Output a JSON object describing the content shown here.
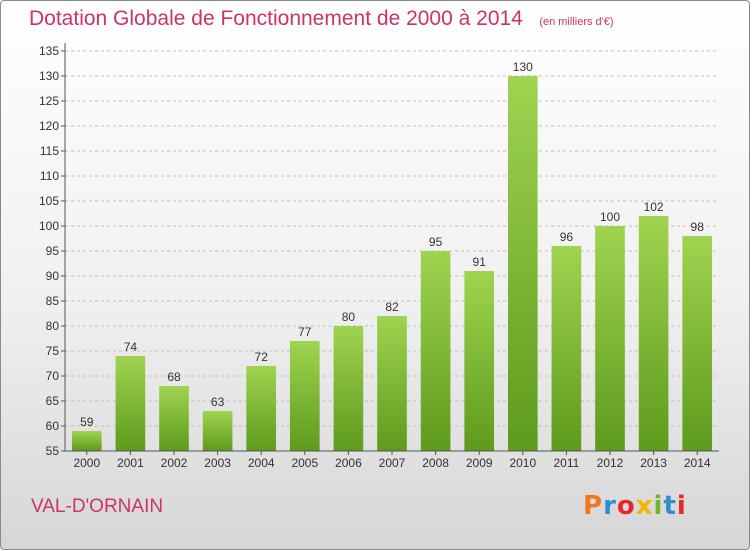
{
  "title": "Dotation Globale de Fonctionnement de 2000 à 2014",
  "unit_note": "(en milliers d'€)",
  "commune": "VAL-D'ORNAIN",
  "logo": "Proxiti",
  "colors": {
    "title": "#cc3366",
    "bar_light": "#9fd450",
    "bar_dark": "#5e9a1c",
    "grid": "#bfbfbf"
  },
  "chart_data": {
    "type": "bar",
    "title": "Dotation Globale de Fonctionnement de 2000 à 2014",
    "unit": "(en milliers d'€)",
    "categories": [
      "2000",
      "2001",
      "2002",
      "2003",
      "2004",
      "2005",
      "2006",
      "2007",
      "2008",
      "2009",
      "2010",
      "2011",
      "2012",
      "2013",
      "2014"
    ],
    "values": [
      59,
      74,
      68,
      63,
      72,
      77,
      80,
      82,
      95,
      91,
      130,
      96,
      100,
      102,
      98
    ],
    "ylim": [
      55,
      135
    ],
    "yticks": [
      55,
      60,
      65,
      70,
      75,
      80,
      85,
      90,
      95,
      100,
      105,
      110,
      115,
      120,
      125,
      130,
      135
    ],
    "grid": true
  }
}
